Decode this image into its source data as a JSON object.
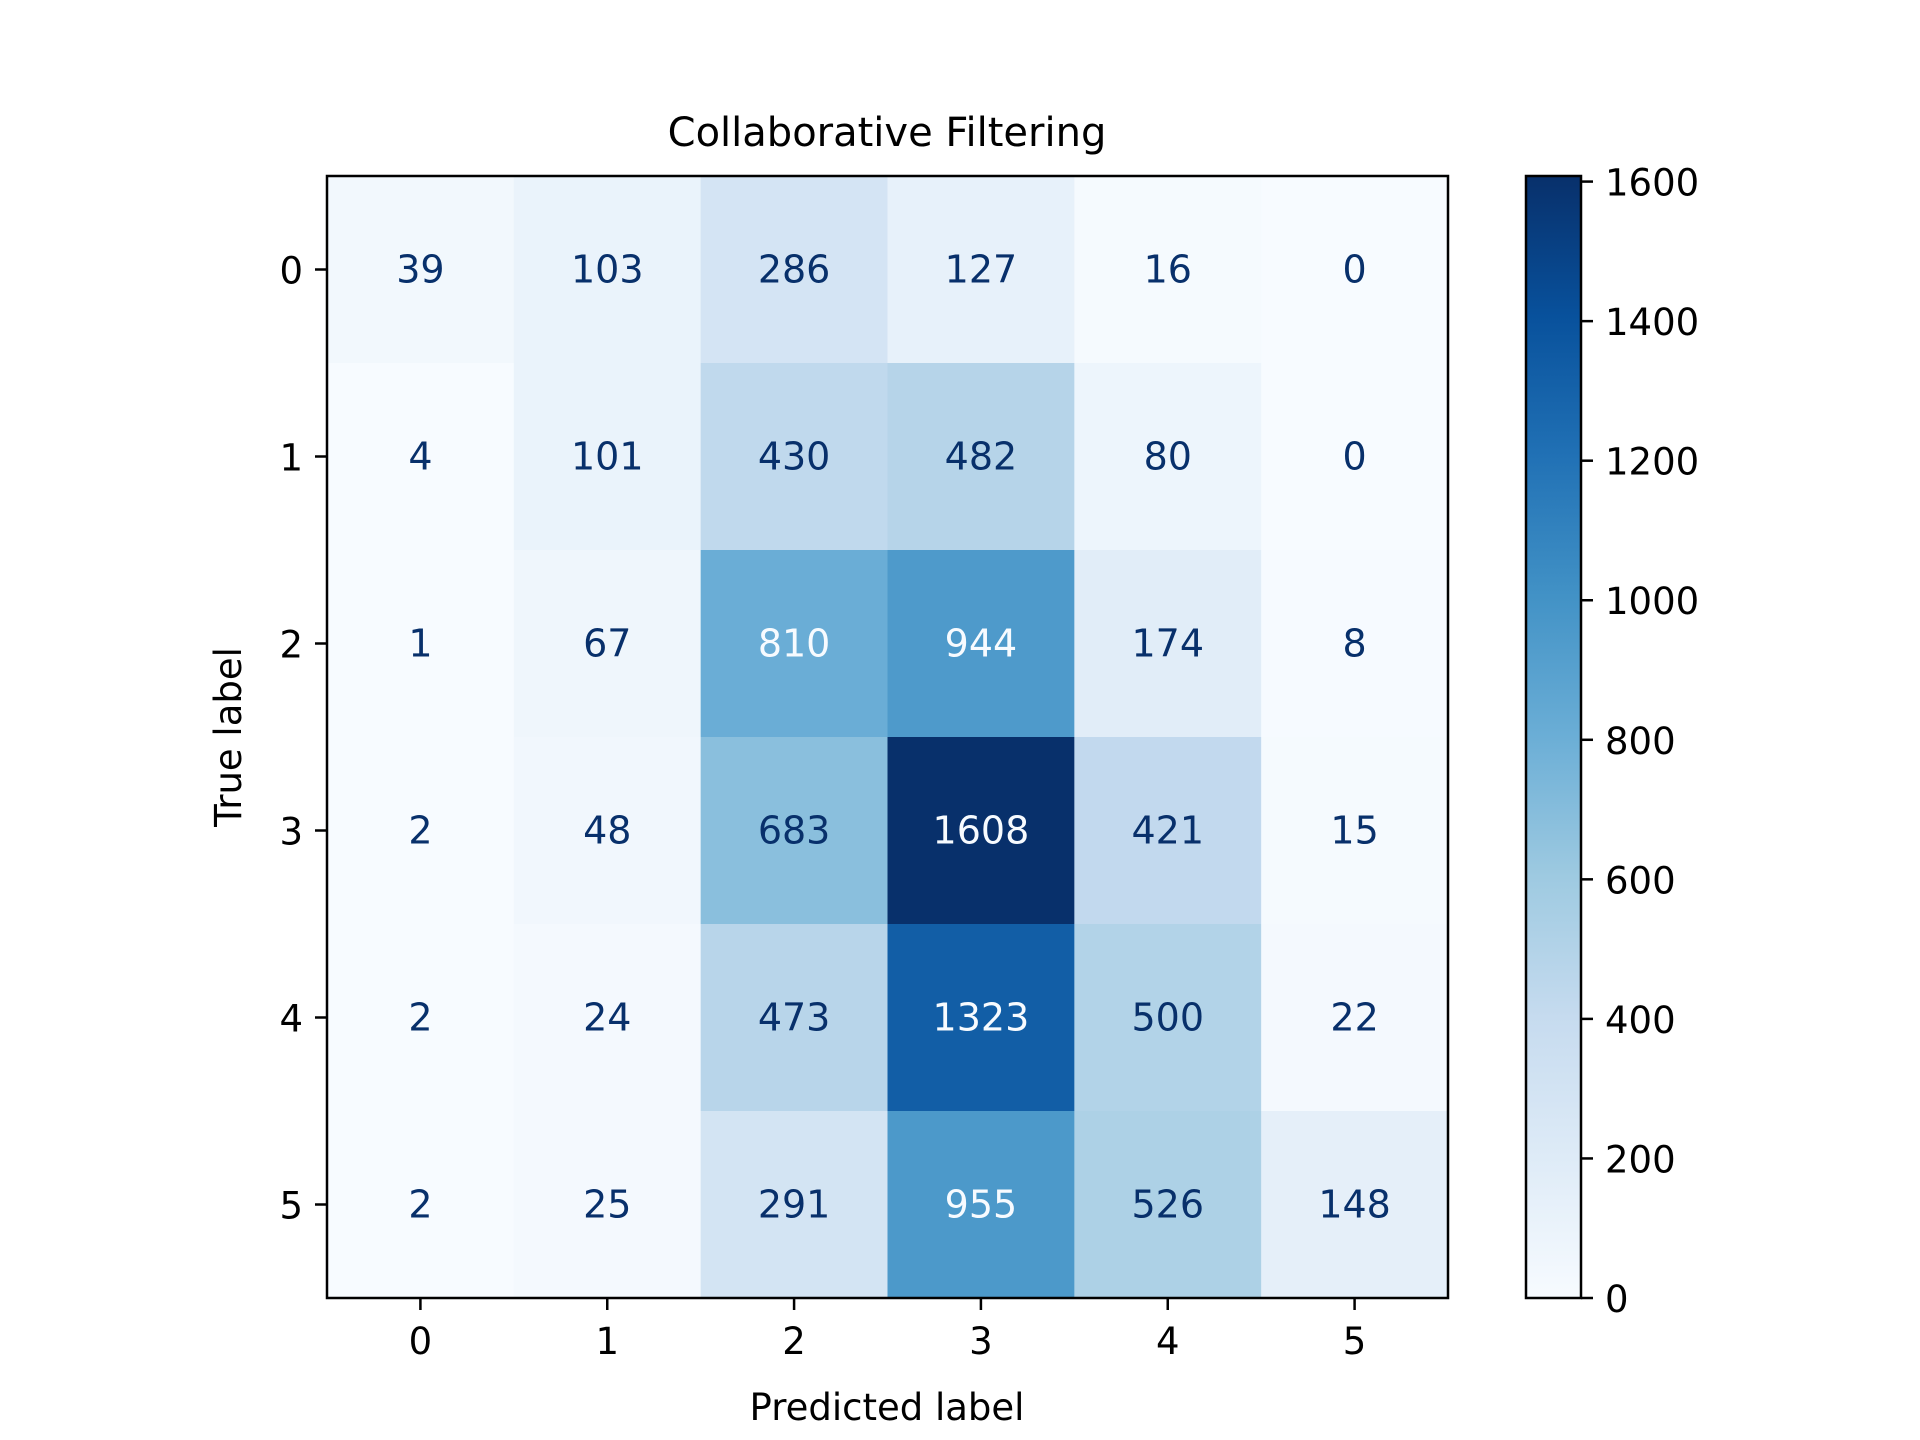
{
  "chart_data": {
    "type": "heatmap",
    "title": "Collaborative Filtering",
    "xlabel": "Predicted label",
    "ylabel": "True label",
    "x_categories": [
      "0",
      "1",
      "2",
      "3",
      "4",
      "5"
    ],
    "y_categories": [
      "0",
      "1",
      "2",
      "3",
      "4",
      "5"
    ],
    "values": [
      [
        39,
        103,
        286,
        127,
        16,
        0
      ],
      [
        4,
        101,
        430,
        482,
        80,
        0
      ],
      [
        1,
        67,
        810,
        944,
        174,
        8
      ],
      [
        2,
        48,
        683,
        1608,
        421,
        15
      ],
      [
        2,
        24,
        473,
        1323,
        500,
        22
      ],
      [
        2,
        25,
        291,
        955,
        526,
        148
      ]
    ],
    "colormap": "Blues",
    "colorbar": {
      "range": [
        0,
        1608
      ],
      "ticks": [
        0,
        200,
        400,
        600,
        800,
        1000,
        1200,
        1400,
        1600
      ]
    },
    "grid": false
  }
}
